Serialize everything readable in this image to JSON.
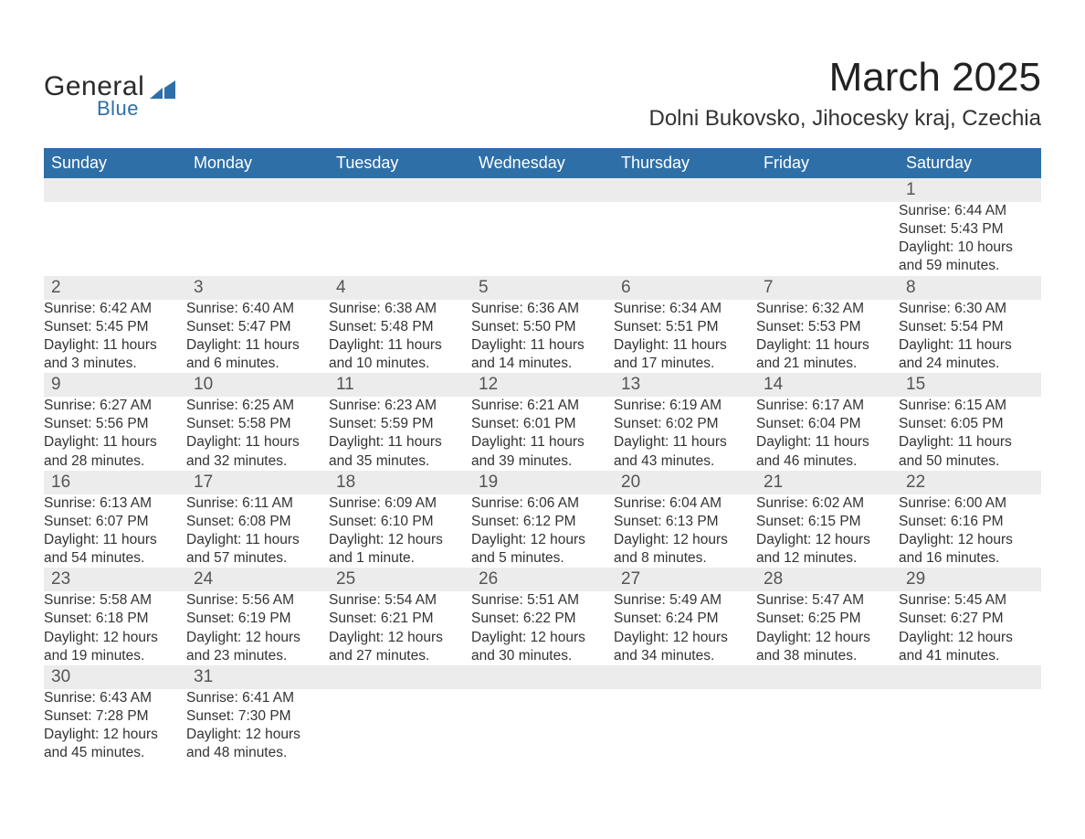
{
  "logo": {
    "word1": "General",
    "word2": "Blue",
    "accent_color": "#2f6fa7"
  },
  "title": {
    "month": "March 2025",
    "location": "Dolni Bukovsko, Jihocesky kraj, Czechia"
  },
  "colors": {
    "header_bg": "#2f6fa7",
    "header_text": "#ffffff",
    "daynum_bg": "#ececec",
    "row_border": "#2f6fa7",
    "text": "#333333"
  },
  "day_headers": [
    "Sunday",
    "Monday",
    "Tuesday",
    "Wednesday",
    "Thursday",
    "Friday",
    "Saturday"
  ],
  "weeks": [
    {
      "days": [
        null,
        null,
        null,
        null,
        null,
        null,
        {
          "n": "1",
          "sunrise": "Sunrise: 6:44 AM",
          "sunset": "Sunset: 5:43 PM",
          "daylight1": "Daylight: 10 hours",
          "daylight2": "and 59 minutes."
        }
      ]
    },
    {
      "days": [
        {
          "n": "2",
          "sunrise": "Sunrise: 6:42 AM",
          "sunset": "Sunset: 5:45 PM",
          "daylight1": "Daylight: 11 hours",
          "daylight2": "and 3 minutes."
        },
        {
          "n": "3",
          "sunrise": "Sunrise: 6:40 AM",
          "sunset": "Sunset: 5:47 PM",
          "daylight1": "Daylight: 11 hours",
          "daylight2": "and 6 minutes."
        },
        {
          "n": "4",
          "sunrise": "Sunrise: 6:38 AM",
          "sunset": "Sunset: 5:48 PM",
          "daylight1": "Daylight: 11 hours",
          "daylight2": "and 10 minutes."
        },
        {
          "n": "5",
          "sunrise": "Sunrise: 6:36 AM",
          "sunset": "Sunset: 5:50 PM",
          "daylight1": "Daylight: 11 hours",
          "daylight2": "and 14 minutes."
        },
        {
          "n": "6",
          "sunrise": "Sunrise: 6:34 AM",
          "sunset": "Sunset: 5:51 PM",
          "daylight1": "Daylight: 11 hours",
          "daylight2": "and 17 minutes."
        },
        {
          "n": "7",
          "sunrise": "Sunrise: 6:32 AM",
          "sunset": "Sunset: 5:53 PM",
          "daylight1": "Daylight: 11 hours",
          "daylight2": "and 21 minutes."
        },
        {
          "n": "8",
          "sunrise": "Sunrise: 6:30 AM",
          "sunset": "Sunset: 5:54 PM",
          "daylight1": "Daylight: 11 hours",
          "daylight2": "and 24 minutes."
        }
      ]
    },
    {
      "days": [
        {
          "n": "9",
          "sunrise": "Sunrise: 6:27 AM",
          "sunset": "Sunset: 5:56 PM",
          "daylight1": "Daylight: 11 hours",
          "daylight2": "and 28 minutes."
        },
        {
          "n": "10",
          "sunrise": "Sunrise: 6:25 AM",
          "sunset": "Sunset: 5:58 PM",
          "daylight1": "Daylight: 11 hours",
          "daylight2": "and 32 minutes."
        },
        {
          "n": "11",
          "sunrise": "Sunrise: 6:23 AM",
          "sunset": "Sunset: 5:59 PM",
          "daylight1": "Daylight: 11 hours",
          "daylight2": "and 35 minutes."
        },
        {
          "n": "12",
          "sunrise": "Sunrise: 6:21 AM",
          "sunset": "Sunset: 6:01 PM",
          "daylight1": "Daylight: 11 hours",
          "daylight2": "and 39 minutes."
        },
        {
          "n": "13",
          "sunrise": "Sunrise: 6:19 AM",
          "sunset": "Sunset: 6:02 PM",
          "daylight1": "Daylight: 11 hours",
          "daylight2": "and 43 minutes."
        },
        {
          "n": "14",
          "sunrise": "Sunrise: 6:17 AM",
          "sunset": "Sunset: 6:04 PM",
          "daylight1": "Daylight: 11 hours",
          "daylight2": "and 46 minutes."
        },
        {
          "n": "15",
          "sunrise": "Sunrise: 6:15 AM",
          "sunset": "Sunset: 6:05 PM",
          "daylight1": "Daylight: 11 hours",
          "daylight2": "and 50 minutes."
        }
      ]
    },
    {
      "days": [
        {
          "n": "16",
          "sunrise": "Sunrise: 6:13 AM",
          "sunset": "Sunset: 6:07 PM",
          "daylight1": "Daylight: 11 hours",
          "daylight2": "and 54 minutes."
        },
        {
          "n": "17",
          "sunrise": "Sunrise: 6:11 AM",
          "sunset": "Sunset: 6:08 PM",
          "daylight1": "Daylight: 11 hours",
          "daylight2": "and 57 minutes."
        },
        {
          "n": "18",
          "sunrise": "Sunrise: 6:09 AM",
          "sunset": "Sunset: 6:10 PM",
          "daylight1": "Daylight: 12 hours",
          "daylight2": "and 1 minute."
        },
        {
          "n": "19",
          "sunrise": "Sunrise: 6:06 AM",
          "sunset": "Sunset: 6:12 PM",
          "daylight1": "Daylight: 12 hours",
          "daylight2": "and 5 minutes."
        },
        {
          "n": "20",
          "sunrise": "Sunrise: 6:04 AM",
          "sunset": "Sunset: 6:13 PM",
          "daylight1": "Daylight: 12 hours",
          "daylight2": "and 8 minutes."
        },
        {
          "n": "21",
          "sunrise": "Sunrise: 6:02 AM",
          "sunset": "Sunset: 6:15 PM",
          "daylight1": "Daylight: 12 hours",
          "daylight2": "and 12 minutes."
        },
        {
          "n": "22",
          "sunrise": "Sunrise: 6:00 AM",
          "sunset": "Sunset: 6:16 PM",
          "daylight1": "Daylight: 12 hours",
          "daylight2": "and 16 minutes."
        }
      ]
    },
    {
      "days": [
        {
          "n": "23",
          "sunrise": "Sunrise: 5:58 AM",
          "sunset": "Sunset: 6:18 PM",
          "daylight1": "Daylight: 12 hours",
          "daylight2": "and 19 minutes."
        },
        {
          "n": "24",
          "sunrise": "Sunrise: 5:56 AM",
          "sunset": "Sunset: 6:19 PM",
          "daylight1": "Daylight: 12 hours",
          "daylight2": "and 23 minutes."
        },
        {
          "n": "25",
          "sunrise": "Sunrise: 5:54 AM",
          "sunset": "Sunset: 6:21 PM",
          "daylight1": "Daylight: 12 hours",
          "daylight2": "and 27 minutes."
        },
        {
          "n": "26",
          "sunrise": "Sunrise: 5:51 AM",
          "sunset": "Sunset: 6:22 PM",
          "daylight1": "Daylight: 12 hours",
          "daylight2": "and 30 minutes."
        },
        {
          "n": "27",
          "sunrise": "Sunrise: 5:49 AM",
          "sunset": "Sunset: 6:24 PM",
          "daylight1": "Daylight: 12 hours",
          "daylight2": "and 34 minutes."
        },
        {
          "n": "28",
          "sunrise": "Sunrise: 5:47 AM",
          "sunset": "Sunset: 6:25 PM",
          "daylight1": "Daylight: 12 hours",
          "daylight2": "and 38 minutes."
        },
        {
          "n": "29",
          "sunrise": "Sunrise: 5:45 AM",
          "sunset": "Sunset: 6:27 PM",
          "daylight1": "Daylight: 12 hours",
          "daylight2": "and 41 minutes."
        }
      ]
    },
    {
      "days": [
        {
          "n": "30",
          "sunrise": "Sunrise: 6:43 AM",
          "sunset": "Sunset: 7:28 PM",
          "daylight1": "Daylight: 12 hours",
          "daylight2": "and 45 minutes."
        },
        {
          "n": "31",
          "sunrise": "Sunrise: 6:41 AM",
          "sunset": "Sunset: 7:30 PM",
          "daylight1": "Daylight: 12 hours",
          "daylight2": "and 48 minutes."
        },
        null,
        null,
        null,
        null,
        null
      ]
    }
  ]
}
